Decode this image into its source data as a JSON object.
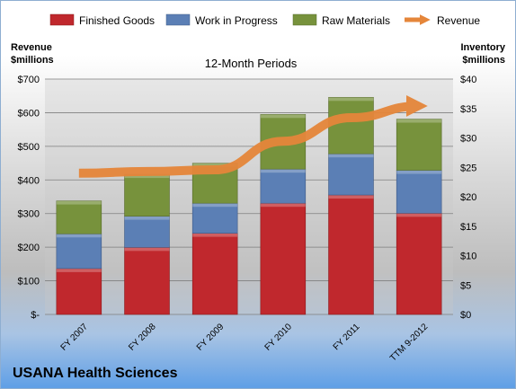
{
  "chart_data": {
    "type": "bar",
    "stacked": true,
    "title": "12-Month Periods",
    "company": "USANA Health Sciences",
    "categories": [
      "FY 2007",
      "FY 2008",
      "FY 2009",
      "FY 2010",
      "FY 2011",
      "TTM 9-2012"
    ],
    "left_axis": {
      "label_line1": "Revenue",
      "label_line2": "$millions",
      "ylim": [
        0,
        700
      ],
      "ticks": [
        {
          "value": 0,
          "label": "$-"
        },
        {
          "value": 100,
          "label": "$100"
        },
        {
          "value": 200,
          "label": "$200"
        },
        {
          "value": 300,
          "label": "$300"
        },
        {
          "value": 400,
          "label": "$400"
        },
        {
          "value": 500,
          "label": "$500"
        },
        {
          "value": 600,
          "label": "$600"
        },
        {
          "value": 700,
          "label": "$700"
        }
      ]
    },
    "right_axis": {
      "label_line1": "Inventory",
      "label_line2": "$millions",
      "ylim": [
        0,
        40
      ],
      "ticks": [
        {
          "value": 0,
          "label": "$0"
        },
        {
          "value": 5,
          "label": "$5"
        },
        {
          "value": 10,
          "label": "$10"
        },
        {
          "value": 15,
          "label": "$15"
        },
        {
          "value": 20,
          "label": "$20"
        },
        {
          "value": 25,
          "label": "$25"
        },
        {
          "value": 30,
          "label": "$30"
        },
        {
          "value": 35,
          "label": "$35"
        },
        {
          "value": 40,
          "label": "$40"
        }
      ]
    },
    "series": [
      {
        "name": "Finished Goods",
        "axis": "right",
        "color": "#c0282d",
        "values": [
          7.8,
          11.4,
          13.8,
          18.9,
          20.3,
          17.2
        ]
      },
      {
        "name": "Work in Progress",
        "axis": "right",
        "color": "#5b7fb5",
        "values": [
          5.9,
          5.3,
          5.1,
          5.8,
          7.0,
          7.3
        ]
      },
      {
        "name": "Raw Materials",
        "axis": "right",
        "color": "#77923c",
        "values": [
          5.6,
          7.1,
          6.8,
          9.3,
          9.6,
          8.7
        ]
      }
    ],
    "line_series": {
      "name": "Revenue",
      "axis": "left",
      "color": "#e5863a",
      "values": [
        420,
        425,
        430,
        515,
        585,
        620
      ]
    },
    "grid": true,
    "legend_position": "top"
  }
}
